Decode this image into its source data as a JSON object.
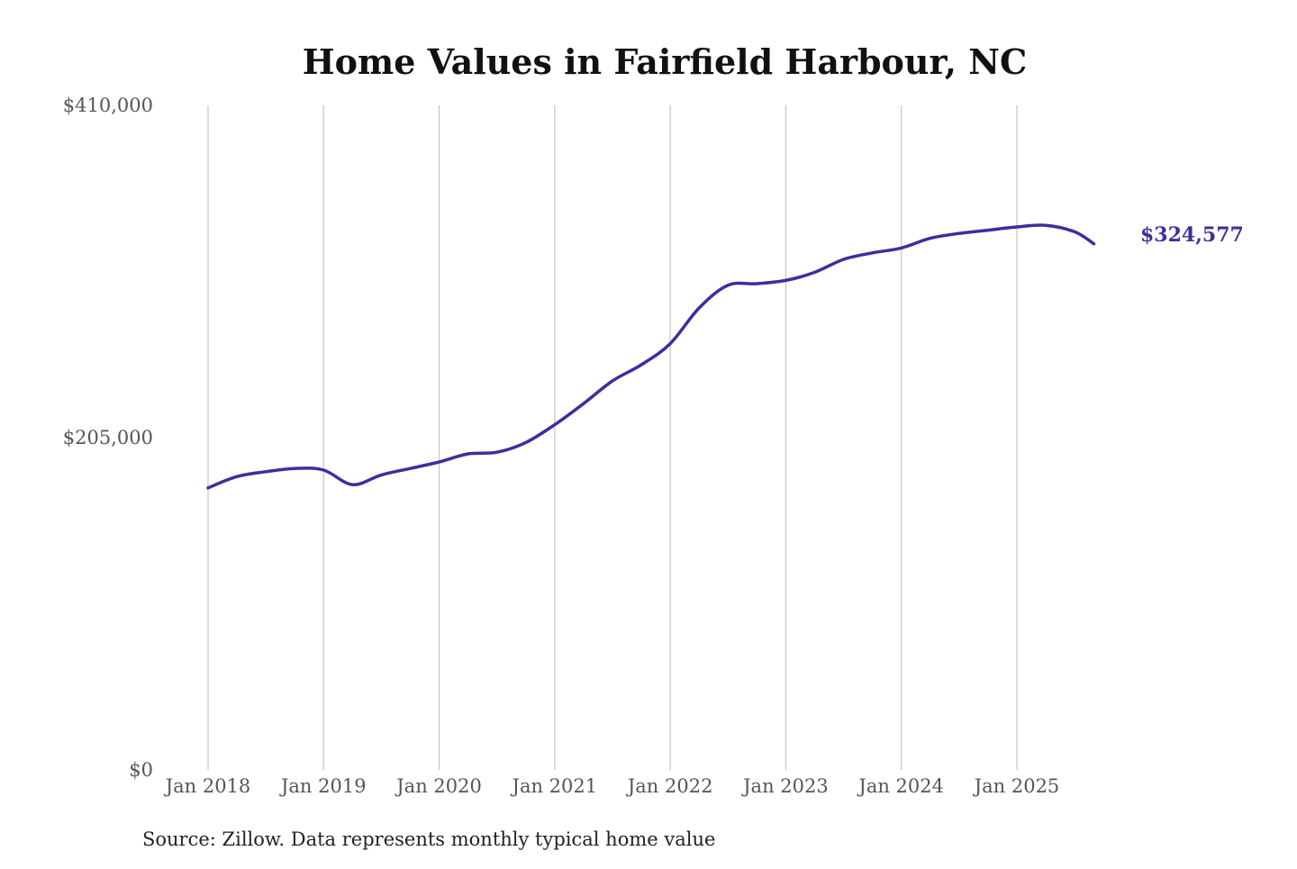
{
  "chart_data": {
    "type": "line",
    "title": "Home Values in Fairfield Harbour, NC",
    "xlabel": "",
    "ylabel": "",
    "x_ticks": [
      "Jan 2018",
      "Jan 2019",
      "Jan 2020",
      "Jan 2021",
      "Jan 2022",
      "Jan 2023",
      "Jan 2024",
      "Jan 2025"
    ],
    "y_ticks": [
      "$410,000",
      "$205,000",
      "$0"
    ],
    "ylim": [
      0,
      410000
    ],
    "xlim": [
      "2018-01",
      "2025-09"
    ],
    "grid": "vertical lines at January of each year",
    "legend": "none",
    "end_label": "$324,577",
    "colors": {
      "series": "#3b2f9e",
      "grid": "#c4c4c4"
    },
    "series": [
      {
        "x": [
          "2018-01",
          "2018-04",
          "2018-07",
          "2018-10",
          "2019-01",
          "2019-04",
          "2019-07",
          "2019-10",
          "2020-01",
          "2020-04",
          "2020-07",
          "2020-10",
          "2021-01",
          "2021-04",
          "2021-07",
          "2021-10",
          "2022-01",
          "2022-04",
          "2022-07",
          "2022-10",
          "2023-01",
          "2023-04",
          "2023-07",
          "2023-10",
          "2024-01",
          "2024-04",
          "2024-07",
          "2024-10",
          "2025-01",
          "2025-04",
          "2025-07",
          "2025-09"
        ],
        "values": [
          174000,
          181000,
          184000,
          186000,
          185000,
          176000,
          182000,
          186000,
          190000,
          195000,
          196000,
          202000,
          213000,
          226000,
          240000,
          250000,
          263000,
          285000,
          299000,
          300000,
          302000,
          307000,
          315000,
          319000,
          322000,
          328000,
          331000,
          333000,
          335000,
          336000,
          332000,
          324577
        ]
      }
    ],
    "source_note": "Source: Zillow. Data represents monthly typical home value"
  }
}
